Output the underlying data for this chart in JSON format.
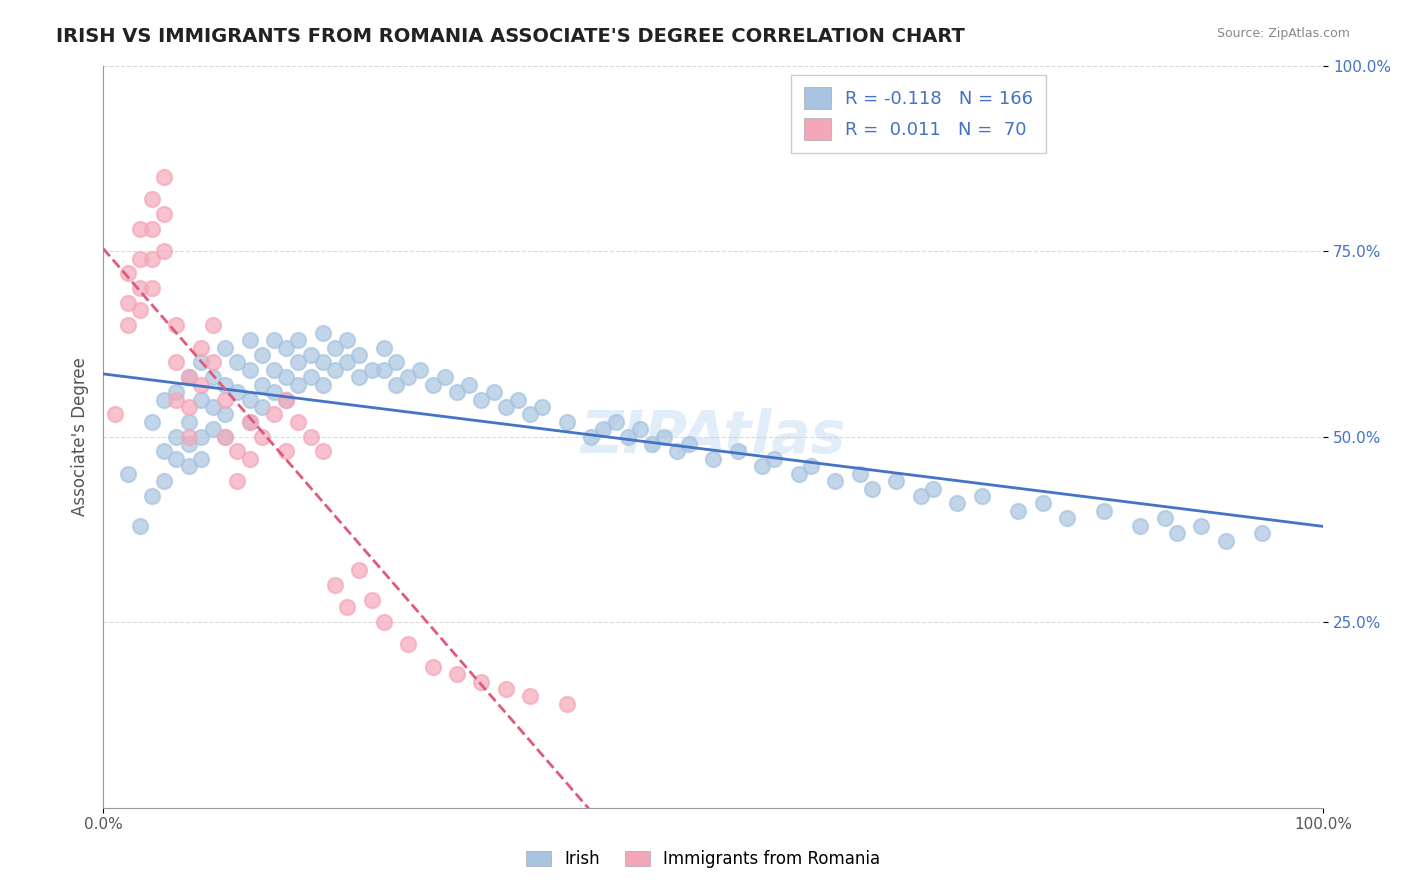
{
  "title": "IRISH VS IMMIGRANTS FROM ROMANIA ASSOCIATE'S DEGREE CORRELATION CHART",
  "source": "Source: ZipAtlas.com",
  "ylabel": "Associate's Degree",
  "xlabel": "",
  "watermark": "ZIPAtlas",
  "legend_irish_r": "R = -0.118",
  "legend_irish_n": "N = 166",
  "legend_romania_r": "R =  0.011",
  "legend_romania_n": "N =  70",
  "irish_color": "#a8c4e0",
  "romania_color": "#f4a7b9",
  "irish_line_color": "#4472c4",
  "romania_line_color": "#e05a7a",
  "xlim": [
    0.0,
    1.0
  ],
  "ylim": [
    0.0,
    1.0
  ],
  "xtick_labels": [
    "0.0%",
    "100.0%"
  ],
  "ytick_labels": [
    "25.0%",
    "50.0%",
    "75.0%",
    "100.0%"
  ],
  "ytick_positions": [
    0.25,
    0.5,
    0.75,
    1.0
  ],
  "title_fontsize": 14,
  "axis_label_fontsize": 12,
  "tick_fontsize": 11,
  "background_color": "#ffffff",
  "irish_scatter": {
    "x": [
      0.02,
      0.03,
      0.04,
      0.04,
      0.05,
      0.05,
      0.05,
      0.06,
      0.06,
      0.06,
      0.07,
      0.07,
      0.07,
      0.07,
      0.08,
      0.08,
      0.08,
      0.08,
      0.09,
      0.09,
      0.09,
      0.1,
      0.1,
      0.1,
      0.1,
      0.11,
      0.11,
      0.12,
      0.12,
      0.12,
      0.12,
      0.13,
      0.13,
      0.13,
      0.14,
      0.14,
      0.14,
      0.15,
      0.15,
      0.15,
      0.16,
      0.16,
      0.16,
      0.17,
      0.17,
      0.18,
      0.18,
      0.18,
      0.19,
      0.19,
      0.2,
      0.2,
      0.21,
      0.21,
      0.22,
      0.23,
      0.23,
      0.24,
      0.24,
      0.25,
      0.26,
      0.27,
      0.28,
      0.29,
      0.3,
      0.31,
      0.32,
      0.33,
      0.34,
      0.35,
      0.36,
      0.38,
      0.4,
      0.41,
      0.42,
      0.43,
      0.44,
      0.45,
      0.46,
      0.47,
      0.48,
      0.5,
      0.52,
      0.54,
      0.55,
      0.57,
      0.58,
      0.6,
      0.62,
      0.63,
      0.65,
      0.67,
      0.68,
      0.7,
      0.72,
      0.75,
      0.77,
      0.79,
      0.82,
      0.85,
      0.87,
      0.88,
      0.9,
      0.92,
      0.95
    ],
    "y": [
      0.45,
      0.38,
      0.52,
      0.42,
      0.55,
      0.48,
      0.44,
      0.56,
      0.5,
      0.47,
      0.58,
      0.52,
      0.49,
      0.46,
      0.6,
      0.55,
      0.5,
      0.47,
      0.58,
      0.54,
      0.51,
      0.62,
      0.57,
      0.53,
      0.5,
      0.6,
      0.56,
      0.63,
      0.59,
      0.55,
      0.52,
      0.61,
      0.57,
      0.54,
      0.63,
      0.59,
      0.56,
      0.62,
      0.58,
      0.55,
      0.63,
      0.6,
      0.57,
      0.61,
      0.58,
      0.64,
      0.6,
      0.57,
      0.62,
      0.59,
      0.63,
      0.6,
      0.61,
      0.58,
      0.59,
      0.62,
      0.59,
      0.6,
      0.57,
      0.58,
      0.59,
      0.57,
      0.58,
      0.56,
      0.57,
      0.55,
      0.56,
      0.54,
      0.55,
      0.53,
      0.54,
      0.52,
      0.5,
      0.51,
      0.52,
      0.5,
      0.51,
      0.49,
      0.5,
      0.48,
      0.49,
      0.47,
      0.48,
      0.46,
      0.47,
      0.45,
      0.46,
      0.44,
      0.45,
      0.43,
      0.44,
      0.42,
      0.43,
      0.41,
      0.42,
      0.4,
      0.41,
      0.39,
      0.4,
      0.38,
      0.39,
      0.37,
      0.38,
      0.36,
      0.37
    ]
  },
  "romania_scatter": {
    "x": [
      0.01,
      0.02,
      0.02,
      0.02,
      0.03,
      0.03,
      0.03,
      0.03,
      0.04,
      0.04,
      0.04,
      0.04,
      0.05,
      0.05,
      0.05,
      0.06,
      0.06,
      0.06,
      0.07,
      0.07,
      0.07,
      0.08,
      0.08,
      0.09,
      0.09,
      0.1,
      0.1,
      0.11,
      0.11,
      0.12,
      0.12,
      0.13,
      0.14,
      0.15,
      0.15,
      0.16,
      0.17,
      0.18,
      0.19,
      0.2,
      0.21,
      0.22,
      0.23,
      0.25,
      0.27,
      0.29,
      0.31,
      0.33,
      0.35,
      0.38
    ],
    "y": [
      0.53,
      0.72,
      0.68,
      0.65,
      0.78,
      0.74,
      0.7,
      0.67,
      0.82,
      0.78,
      0.74,
      0.7,
      0.85,
      0.8,
      0.75,
      0.65,
      0.6,
      0.55,
      0.58,
      0.54,
      0.5,
      0.62,
      0.57,
      0.65,
      0.6,
      0.55,
      0.5,
      0.48,
      0.44,
      0.52,
      0.47,
      0.5,
      0.53,
      0.55,
      0.48,
      0.52,
      0.5,
      0.48,
      0.3,
      0.27,
      0.32,
      0.28,
      0.25,
      0.22,
      0.19,
      0.18,
      0.17,
      0.16,
      0.15,
      0.14
    ]
  }
}
